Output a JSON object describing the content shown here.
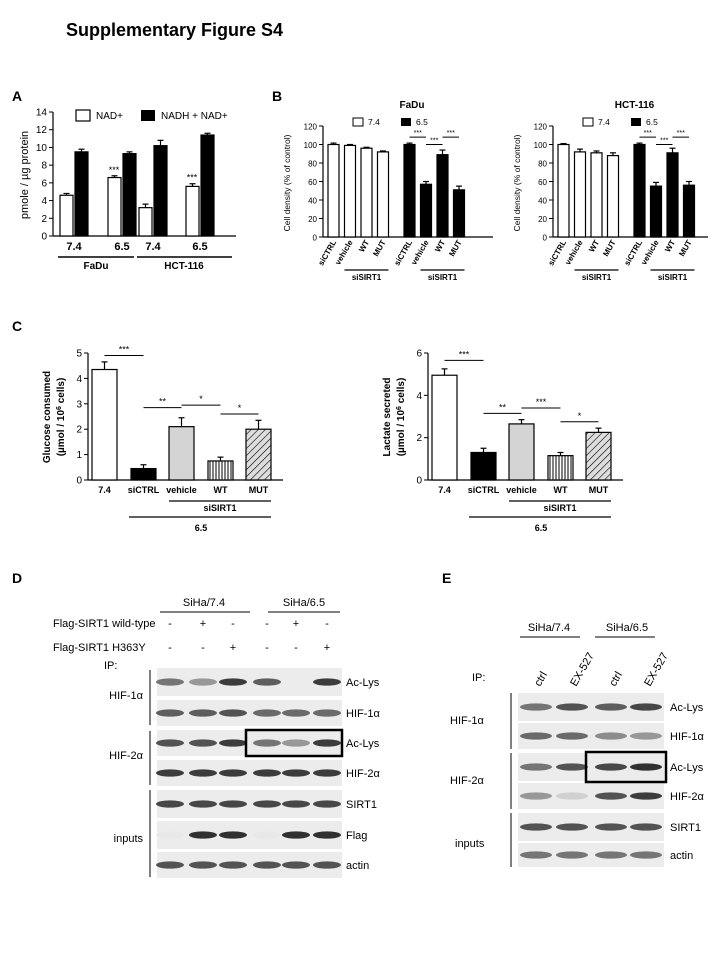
{
  "title": "Supplementary Figure S4",
  "panel_labels": {
    "A": "A",
    "B": "B",
    "C": "C",
    "D": "D",
    "E": "E"
  },
  "chart_data": [
    {
      "panel": "A",
      "type": "bar",
      "ylabel": "pmole / µg protein",
      "ylim": [
        0,
        14
      ],
      "yticks": [
        0,
        2,
        4,
        6,
        8,
        10,
        12,
        14
      ],
      "groups": [
        {
          "ph": "7.4",
          "cell": "FaDu",
          "nad": 4.6,
          "nadh": 9.5,
          "nad_err": 0.2,
          "nadh_err": 0.3,
          "sig": ""
        },
        {
          "ph": "6.5",
          "cell": "FaDu",
          "nad": 6.6,
          "nadh": 9.3,
          "nad_err": 0.2,
          "nadh_err": 0.2,
          "sig": "***"
        },
        {
          "ph": "7.4",
          "cell": "HCT-116",
          "nad": 3.2,
          "nadh": 10.2,
          "nad_err": 0.4,
          "nadh_err": 0.6,
          "sig": ""
        },
        {
          "ph": "6.5",
          "cell": "HCT-116",
          "nad": 5.6,
          "nadh": 11.4,
          "nad_err": 0.3,
          "nadh_err": 0.2,
          "sig": "***"
        }
      ],
      "cells": [
        "FaDu",
        "HCT-116"
      ],
      "legend": [
        "NAD+",
        "NADH + NAD+"
      ]
    },
    {
      "panel": "B1",
      "type": "bar",
      "title": "FaDu",
      "ylabel": "Cell density (% of control)",
      "ylim": [
        0,
        120
      ],
      "yticks": [
        0,
        20,
        40,
        60,
        80,
        100,
        120
      ],
      "legend": [
        "7.4",
        "6.5"
      ],
      "categories": [
        "siCTRL",
        "vehicle",
        "WT",
        "MUT",
        "siCTRL",
        "vehicle",
        "WT",
        "MUT"
      ],
      "values": [
        100,
        99,
        96,
        92,
        100,
        57,
        89,
        51
      ],
      "errors": [
        1.5,
        1,
        1,
        1,
        1.5,
        3,
        5,
        4
      ],
      "fills": [
        "white",
        "white",
        "white",
        "white",
        "black",
        "black",
        "black",
        "black"
      ],
      "group_label": "siSIRT1",
      "sig": [
        "***",
        "***",
        "***"
      ]
    },
    {
      "panel": "B2",
      "type": "bar",
      "title": "HCT-116",
      "ylabel": "Cell density (% of control)",
      "ylim": [
        0,
        120
      ],
      "yticks": [
        0,
        20,
        40,
        60,
        80,
        100,
        120
      ],
      "legend": [
        "7.4",
        "6.5"
      ],
      "categories": [
        "siCTRL",
        "vehicle",
        "WT",
        "MUT",
        "siCTRL",
        "vehicle",
        "WT",
        "MUT"
      ],
      "values": [
        100,
        92,
        91,
        88,
        100,
        55,
        91,
        56
      ],
      "errors": [
        1,
        3,
        2,
        3,
        1.5,
        4,
        5,
        4
      ],
      "fills": [
        "white",
        "white",
        "white",
        "white",
        "black",
        "black",
        "black",
        "black"
      ],
      "group_label": "siSIRT1",
      "sig": [
        "***",
        "***",
        "***"
      ]
    },
    {
      "panel": "C1",
      "type": "bar",
      "ylabel": "Glucose consumed",
      "ylabel2": "(µmol / 10",
      "ylabel_exp": "6",
      "ylabel3": " cells)",
      "ylim": [
        0,
        5
      ],
      "yticks": [
        0,
        1,
        2,
        3,
        4,
        5
      ],
      "categories": [
        "7.4",
        "siCTRL",
        "vehicle",
        "WT",
        "MUT"
      ],
      "values": [
        4.35,
        0.45,
        2.1,
        0.75,
        2.0
      ],
      "errors": [
        0.3,
        0.15,
        0.35,
        0.15,
        0.35
      ],
      "fills": [
        "white",
        "black",
        "lightgray",
        "vstripe",
        "diag"
      ],
      "sig": [
        "***",
        "**",
        "*",
        "*"
      ],
      "group_label": "siSIRT1",
      "ph_label": "6.5"
    },
    {
      "panel": "C2",
      "type": "bar",
      "ylabel": "Lactate secreted",
      "ylabel2": "(µmol / 10",
      "ylabel_exp": "6",
      "ylabel3": " cells)",
      "ylim": [
        0,
        6
      ],
      "yticks": [
        0,
        2,
        4,
        6
      ],
      "categories": [
        "7.4",
        "siCTRL",
        "vehicle",
        "WT",
        "MUT"
      ],
      "values": [
        4.95,
        1.3,
        2.65,
        1.15,
        2.25
      ],
      "errors": [
        0.3,
        0.2,
        0.2,
        0.15,
        0.2
      ],
      "fills": [
        "white",
        "black",
        "lightgray",
        "vstripe",
        "diag"
      ],
      "sig": [
        "***",
        "**",
        "***",
        "*"
      ],
      "group_label": "siSIRT1",
      "ph_label": "6.5"
    }
  ],
  "panel_d": {
    "groups": [
      "SiHa/7.4",
      "SiHa/6.5"
    ],
    "rows": [
      {
        "label": "Flag-SIRT1 wild-type",
        "marks": [
          "-",
          "+",
          "-",
          "-",
          "+",
          "-"
        ]
      },
      {
        "label": "Flag-SIRT1 H363Y",
        "marks": [
          "-",
          "-",
          "+",
          "-",
          "-",
          "+"
        ]
      }
    ],
    "ip_label": "IP:",
    "row_groups": [
      "HIF-1α",
      "HIF-2α",
      "inputs"
    ],
    "bands": [
      "Ac-Lys",
      "HIF-1α",
      "Ac-Lys",
      "HIF-2α",
      "SIRT1",
      "Flag",
      "actin"
    ]
  },
  "panel_e": {
    "groups": [
      "SiHa/7.4",
      "SiHa/6.5"
    ],
    "lanes": [
      "ctrl",
      "EX-527",
      "ctrl",
      "EX-527"
    ],
    "ip_label": "IP:",
    "row_groups": [
      "HIF-1α",
      "HIF-2α",
      "inputs"
    ],
    "bands": [
      "Ac-Lys",
      "HIF-1α",
      "Ac-Lys",
      "HIF-2α",
      "SIRT1",
      "actin"
    ]
  }
}
